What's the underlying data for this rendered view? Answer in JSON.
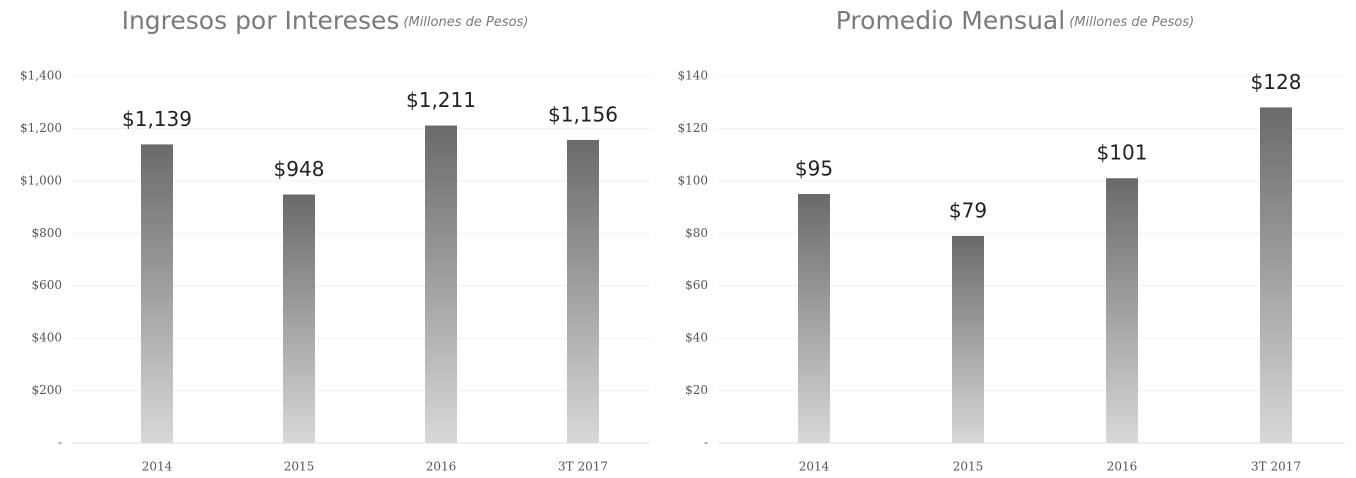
{
  "chart_data": [
    {
      "type": "bar",
      "title": "Ingresos por Intereses",
      "subtitle": "(Millones de Pesos)",
      "categories": [
        "2014",
        "2015",
        "2016",
        "3T 2017"
      ],
      "values": [
        1139,
        948,
        1211,
        1156
      ],
      "value_labels": [
        "$1,139",
        "$948",
        "$1,211",
        "$1,156"
      ],
      "ylim": [
        0,
        1400
      ],
      "yticks": [
        {
          "value": 0,
          "label": "-"
        },
        {
          "value": 200,
          "label": "$200"
        },
        {
          "value": 400,
          "label": "$400"
        },
        {
          "value": 600,
          "label": "$600"
        },
        {
          "value": 800,
          "label": "$800"
        },
        {
          "value": 1000,
          "label": "$1,000"
        },
        {
          "value": 1200,
          "label": "$1,200"
        },
        {
          "value": 1400,
          "label": "$1,400"
        }
      ],
      "grid": true
    },
    {
      "type": "bar",
      "title": "Promedio Mensual",
      "subtitle": "(Millones de Pesos)",
      "categories": [
        "2014",
        "2015",
        "2016",
        "3T 2017"
      ],
      "values": [
        95,
        79,
        101,
        128
      ],
      "value_labels": [
        "$95",
        "$79",
        "$101",
        "$128"
      ],
      "ylim": [
        0,
        140
      ],
      "yticks": [
        {
          "value": 0,
          "label": "-"
        },
        {
          "value": 20,
          "label": "$20"
        },
        {
          "value": 40,
          "label": "$40"
        },
        {
          "value": 60,
          "label": "$60"
        },
        {
          "value": 80,
          "label": "$80"
        },
        {
          "value": 100,
          "label": "$100"
        },
        {
          "value": 120,
          "label": "$120"
        },
        {
          "value": 140,
          "label": "$140"
        }
      ],
      "grid": true
    }
  ]
}
